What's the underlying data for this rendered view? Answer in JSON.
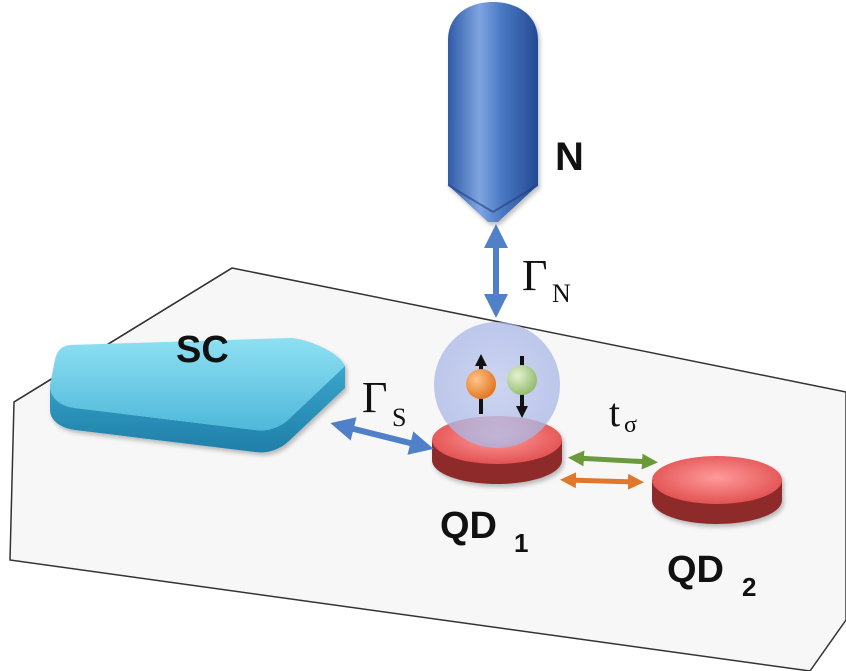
{
  "labels": {
    "normal_lead": "N",
    "superconductor": "SC",
    "qd1_main": "QD",
    "qd1_sub": "1",
    "qd2_main": "QD",
    "qd2_sub": "2"
  },
  "couplings": {
    "gamma_n_symbol": "Γ",
    "gamma_n_sub": "N",
    "gamma_s_symbol": "Γ",
    "gamma_s_sub": "S",
    "t_symbol": "t",
    "t_sub": "σ"
  },
  "colors": {
    "lead_blue": "#4a78c2",
    "sc_cyan": "#5cc4e2",
    "dot_red": "#e85b5b",
    "arrow_blue": "#4f80c8",
    "arrow_green": "#6a9a3a",
    "arrow_orange": "#e0772a",
    "electron_orange": "#e8822e",
    "electron_green": "#a9c98a"
  }
}
